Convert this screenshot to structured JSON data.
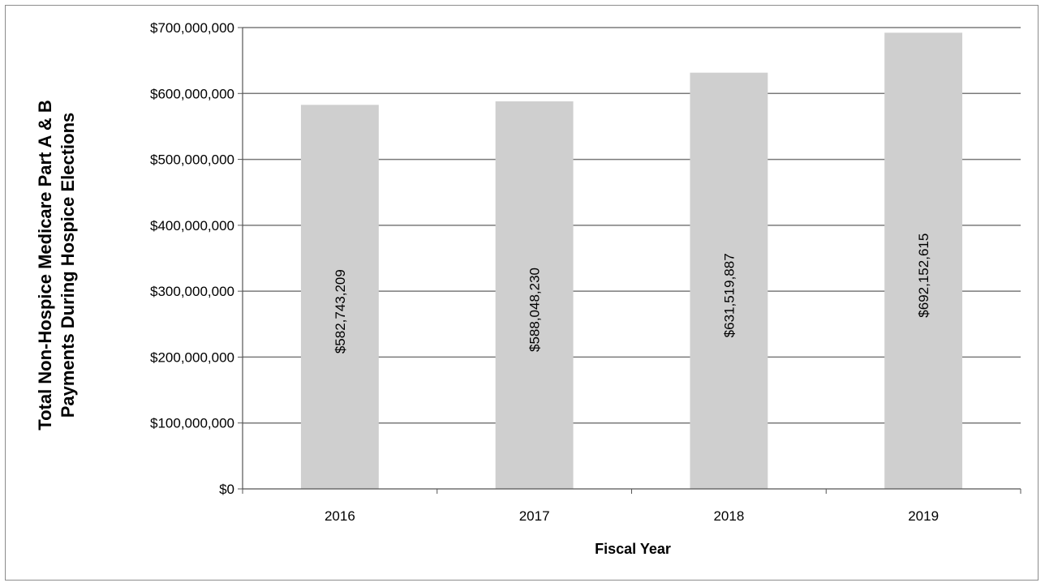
{
  "chart_data": {
    "type": "bar",
    "categories": [
      "2016",
      "2017",
      "2018",
      "2019"
    ],
    "values": [
      582743209,
      588048230,
      631519887,
      692152615
    ],
    "data_labels": [
      "$582,743,209",
      "$588,048,230",
      "$631,519,887",
      "$692,152,615"
    ],
    "title": "",
    "xlabel": "Fiscal Year",
    "ylabel_lines": [
      "Total Non-Hospice Medicare Part A & B",
      "Payments During Hospice Elections"
    ],
    "ylim": [
      0,
      700000000
    ],
    "yticks": [
      0,
      100000000,
      200000000,
      300000000,
      400000000,
      500000000,
      600000000,
      700000000
    ],
    "ytick_labels": [
      "$0",
      "$100,000,000",
      "$200,000,000",
      "$300,000,000",
      "$400,000,000",
      "$500,000,000",
      "$600,000,000",
      "$700,000,000"
    ],
    "grid": true,
    "legend": "none",
    "bar_color": "#cfcfcf"
  }
}
